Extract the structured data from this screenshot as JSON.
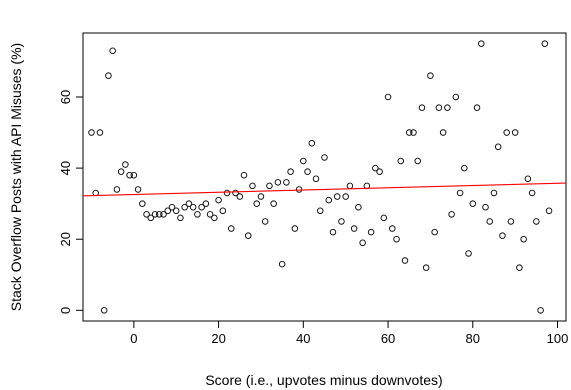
{
  "chart_data": {
    "type": "scatter",
    "xlabel": "Score (i.e., upvotes minus downvotes)",
    "ylabel": "Stack Overflow Posts with API Misuses (%)",
    "xlim": [
      -12,
      102
    ],
    "ylim": [
      -3,
      78
    ],
    "x_ticks": [
      0,
      20,
      40,
      60,
      80,
      100
    ],
    "y_ticks": [
      0,
      20,
      40,
      60
    ],
    "grid": false,
    "legend": "none",
    "point_color": "#000000",
    "trend_color": "#ff0000",
    "points": [
      {
        "x": -10,
        "y": 50
      },
      {
        "x": -9,
        "y": 33
      },
      {
        "x": -8,
        "y": 50
      },
      {
        "x": -7,
        "y": 0
      },
      {
        "x": -6,
        "y": 66
      },
      {
        "x": -5,
        "y": 73
      },
      {
        "x": -4,
        "y": 34
      },
      {
        "x": -3,
        "y": 39
      },
      {
        "x": -2,
        "y": 41
      },
      {
        "x": -1,
        "y": 38
      },
      {
        "x": 0,
        "y": 38
      },
      {
        "x": 1,
        "y": 34
      },
      {
        "x": 2,
        "y": 30
      },
      {
        "x": 3,
        "y": 27
      },
      {
        "x": 4,
        "y": 26
      },
      {
        "x": 5,
        "y": 27
      },
      {
        "x": 6,
        "y": 27
      },
      {
        "x": 7,
        "y": 27
      },
      {
        "x": 8,
        "y": 28
      },
      {
        "x": 9,
        "y": 29
      },
      {
        "x": 10,
        "y": 28
      },
      {
        "x": 11,
        "y": 26
      },
      {
        "x": 12,
        "y": 29
      },
      {
        "x": 13,
        "y": 30
      },
      {
        "x": 14,
        "y": 29
      },
      {
        "x": 15,
        "y": 27
      },
      {
        "x": 16,
        "y": 29
      },
      {
        "x": 17,
        "y": 30
      },
      {
        "x": 18,
        "y": 27
      },
      {
        "x": 19,
        "y": 26
      },
      {
        "x": 20,
        "y": 31
      },
      {
        "x": 21,
        "y": 28
      },
      {
        "x": 22,
        "y": 33
      },
      {
        "x": 23,
        "y": 23
      },
      {
        "x": 24,
        "y": 33
      },
      {
        "x": 25,
        "y": 32
      },
      {
        "x": 26,
        "y": 38
      },
      {
        "x": 27,
        "y": 21
      },
      {
        "x": 28,
        "y": 35
      },
      {
        "x": 29,
        "y": 30
      },
      {
        "x": 30,
        "y": 32
      },
      {
        "x": 31,
        "y": 25
      },
      {
        "x": 32,
        "y": 35
      },
      {
        "x": 33,
        "y": 30
      },
      {
        "x": 34,
        "y": 36
      },
      {
        "x": 35,
        "y": 13
      },
      {
        "x": 36,
        "y": 36
      },
      {
        "x": 37,
        "y": 39
      },
      {
        "x": 38,
        "y": 23
      },
      {
        "x": 39,
        "y": 34
      },
      {
        "x": 40,
        "y": 42
      },
      {
        "x": 41,
        "y": 39
      },
      {
        "x": 42,
        "y": 47
      },
      {
        "x": 43,
        "y": 37
      },
      {
        "x": 44,
        "y": 28
      },
      {
        "x": 45,
        "y": 43
      },
      {
        "x": 46,
        "y": 31
      },
      {
        "x": 47,
        "y": 22
      },
      {
        "x": 48,
        "y": 32
      },
      {
        "x": 49,
        "y": 25
      },
      {
        "x": 50,
        "y": 32
      },
      {
        "x": 51,
        "y": 35
      },
      {
        "x": 52,
        "y": 23
      },
      {
        "x": 53,
        "y": 29
      },
      {
        "x": 54,
        "y": 19
      },
      {
        "x": 55,
        "y": 35
      },
      {
        "x": 56,
        "y": 22
      },
      {
        "x": 57,
        "y": 40
      },
      {
        "x": 58,
        "y": 39
      },
      {
        "x": 59,
        "y": 26
      },
      {
        "x": 60,
        "y": 60
      },
      {
        "x": 61,
        "y": 23
      },
      {
        "x": 62,
        "y": 20
      },
      {
        "x": 63,
        "y": 42
      },
      {
        "x": 64,
        "y": 14
      },
      {
        "x": 65,
        "y": 50
      },
      {
        "x": 66,
        "y": 50
      },
      {
        "x": 67,
        "y": 42
      },
      {
        "x": 68,
        "y": 57
      },
      {
        "x": 69,
        "y": 12
      },
      {
        "x": 70,
        "y": 66
      },
      {
        "x": 71,
        "y": 22
      },
      {
        "x": 72,
        "y": 57
      },
      {
        "x": 73,
        "y": 50
      },
      {
        "x": 74,
        "y": 57
      },
      {
        "x": 75,
        "y": 27
      },
      {
        "x": 76,
        "y": 60
      },
      {
        "x": 77,
        "y": 33
      },
      {
        "x": 78,
        "y": 40
      },
      {
        "x": 79,
        "y": 16
      },
      {
        "x": 80,
        "y": 30
      },
      {
        "x": 81,
        "y": 57
      },
      {
        "x": 82,
        "y": 75
      },
      {
        "x": 83,
        "y": 29
      },
      {
        "x": 84,
        "y": 25
      },
      {
        "x": 85,
        "y": 33
      },
      {
        "x": 86,
        "y": 46
      },
      {
        "x": 87,
        "y": 21
      },
      {
        "x": 88,
        "y": 50
      },
      {
        "x": 89,
        "y": 25
      },
      {
        "x": 90,
        "y": 50
      },
      {
        "x": 91,
        "y": 12
      },
      {
        "x": 92,
        "y": 20
      },
      {
        "x": 93,
        "y": 37
      },
      {
        "x": 94,
        "y": 33
      },
      {
        "x": 95,
        "y": 25
      },
      {
        "x": 96,
        "y": 0
      },
      {
        "x": 97,
        "y": 75
      },
      {
        "x": 98,
        "y": 28
      }
    ],
    "trend_line": {
      "x1": -12,
      "y1": 32.2,
      "x2": 102,
      "y2": 35.8
    }
  }
}
